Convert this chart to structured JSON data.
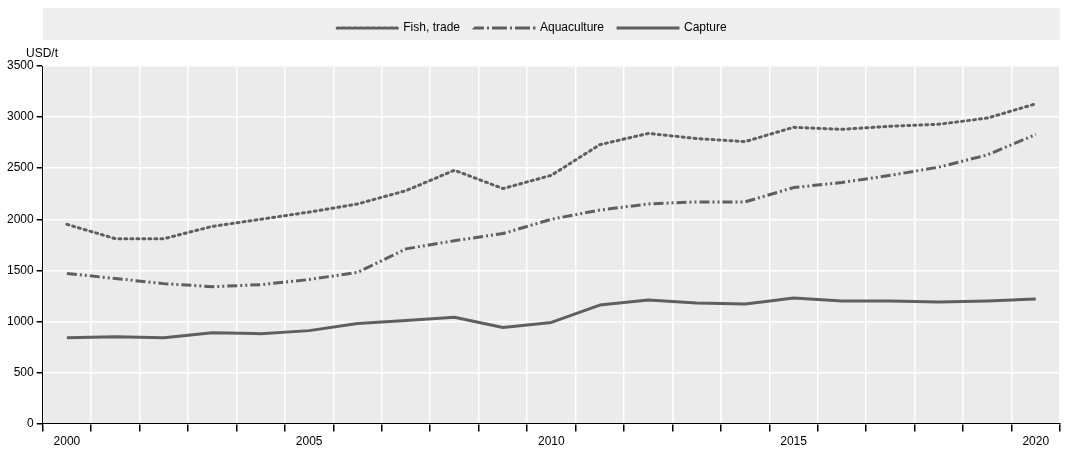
{
  "chart_data": {
    "type": "line",
    "ylabel": "USD/t",
    "categories": [
      "2000",
      null,
      null,
      null,
      null,
      "2005",
      null,
      null,
      null,
      null,
      "2010",
      null,
      null,
      null,
      null,
      "2015",
      null,
      null,
      null,
      null,
      "2020"
    ],
    "series": [
      {
        "name": "Fish, trade",
        "color": "#5f5f5f",
        "line_style": "dotted",
        "values": [
          1950,
          1810,
          1810,
          1930,
          2000,
          2070,
          2150,
          2280,
          2480,
          2300,
          2430,
          2730,
          2840,
          2790,
          2760,
          2900,
          2880,
          2910,
          2930,
          2990,
          3130
        ]
      },
      {
        "name": "Aquaculture",
        "color": "#5f5f5f",
        "line_style": "dashdot",
        "values": [
          1470,
          1420,
          1370,
          1340,
          1360,
          1410,
          1480,
          1710,
          1790,
          1860,
          2000,
          2090,
          2150,
          2170,
          2170,
          2310,
          2360,
          2430,
          2510,
          2630,
          2830
        ]
      },
      {
        "name": "Capture",
        "color": "#5f5f5f",
        "line_style": "solid",
        "values": [
          840,
          850,
          840,
          890,
          880,
          910,
          980,
          1010,
          1040,
          940,
          990,
          1160,
          1210,
          1180,
          1170,
          1230,
          1200,
          1200,
          1190,
          1200,
          1220
        ]
      }
    ],
    "ylim": [
      0,
      3500
    ],
    "yticks": [
      0,
      500,
      1000,
      1500,
      2000,
      2500,
      3000,
      3500
    ],
    "grid": true,
    "legend": "top",
    "marker": "none"
  }
}
